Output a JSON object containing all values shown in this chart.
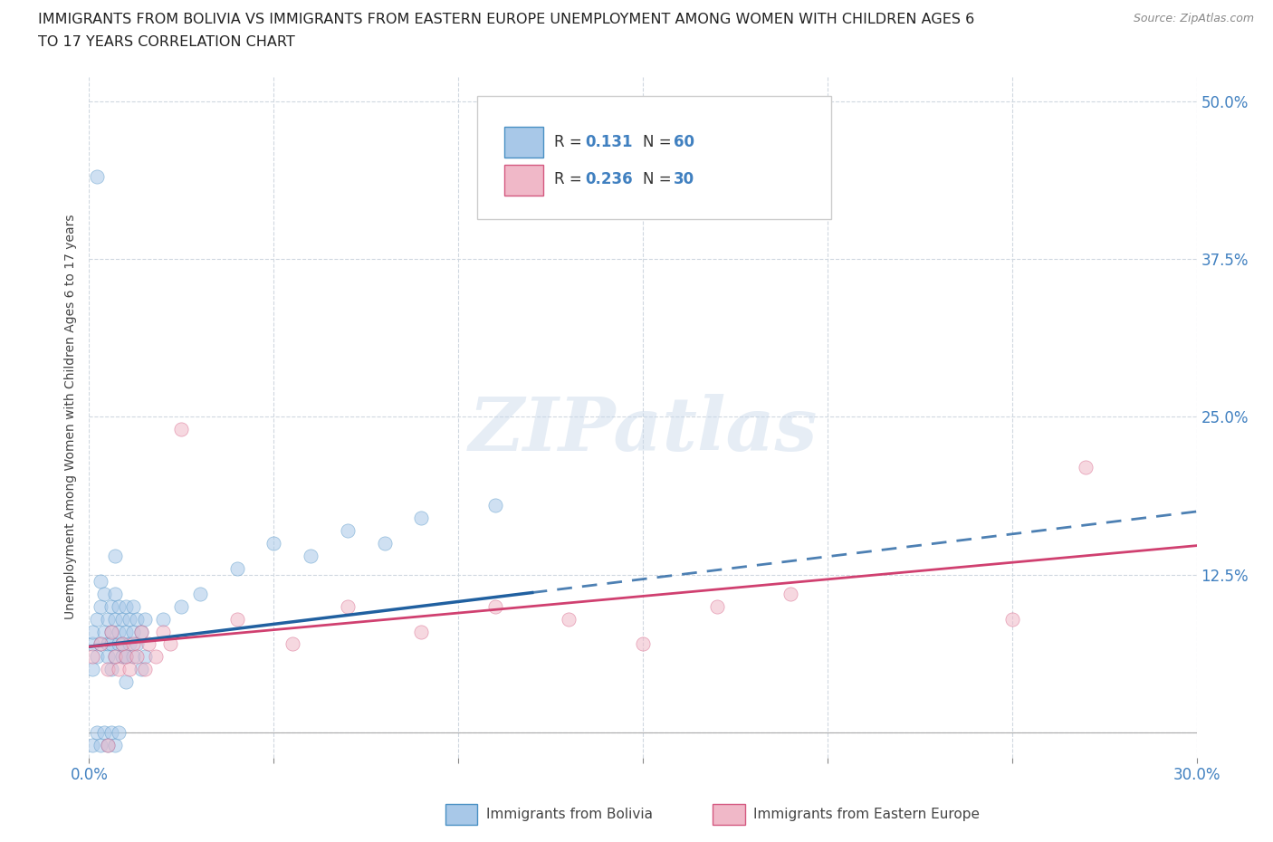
{
  "title_line1": "IMMIGRANTS FROM BOLIVIA VS IMMIGRANTS FROM EASTERN EUROPE UNEMPLOYMENT AMONG WOMEN WITH CHILDREN AGES 6",
  "title_line2": "TO 17 YEARS CORRELATION CHART",
  "source": "Source: ZipAtlas.com",
  "ylabel": "Unemployment Among Women with Children Ages 6 to 17 years",
  "xlim": [
    0.0,
    0.3
  ],
  "ylim": [
    -0.02,
    0.52
  ],
  "yticks": [
    0.0,
    0.125,
    0.25,
    0.375,
    0.5
  ],
  "ytick_labels": [
    "",
    "12.5%",
    "25.0%",
    "37.5%",
    "50.0%"
  ],
  "xtick_positions": [
    0.0,
    0.05,
    0.1,
    0.15,
    0.2,
    0.25,
    0.3
  ],
  "xtick_labels": [
    "0.0%",
    "",
    "",
    "",
    "",
    "",
    "30.0%"
  ],
  "bolivia_color": "#a8c8e8",
  "bolivia_edge_color": "#4a90c4",
  "eastern_europe_color": "#f0b8c8",
  "eastern_europe_edge_color": "#d45880",
  "bolivia_line_color": "#2060a0",
  "eastern_europe_line_color": "#d04070",
  "bolivia_R": 0.131,
  "bolivia_N": 60,
  "eastern_europe_R": 0.236,
  "eastern_europe_N": 30,
  "bolivia_trend_x": [
    0.0,
    0.3
  ],
  "bolivia_trend_y": [
    0.068,
    0.175
  ],
  "bolivia_trend_solid_end": 0.12,
  "eastern_europe_trend_x": [
    0.0,
    0.3
  ],
  "eastern_europe_trend_y": [
    0.068,
    0.148
  ],
  "background_color": "#ffffff",
  "grid_color": "#d0d8e0",
  "watermark": "ZIPatlas",
  "title_fontsize": 11.5,
  "tick_label_color": "#4080c0",
  "marker_size": 120,
  "marker_alpha": 0.55
}
